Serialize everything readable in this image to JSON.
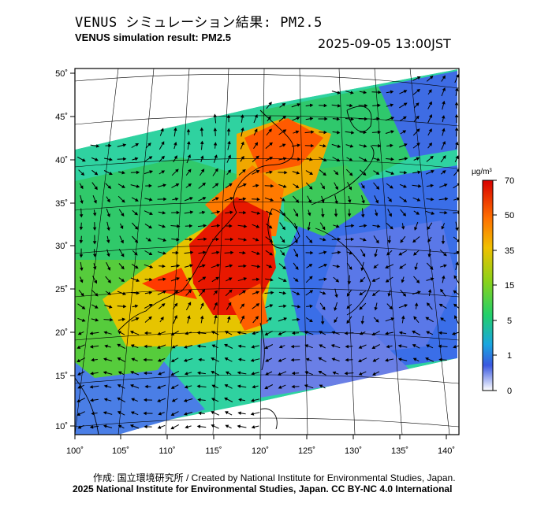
{
  "title_jp": "VENUS シミュレーション結果: PM2.5",
  "title_en": "VENUS simulation result: PM2.5",
  "datetime": "2025-09-05 13:00JST",
  "map": {
    "lat_labels": [
      "50˚",
      "45˚",
      "40˚",
      "35˚",
      "30˚",
      "25˚",
      "20˚",
      "15˚",
      "10˚"
    ],
    "lon_labels": [
      "100˚",
      "105˚",
      "110˚",
      "115˚",
      "120˚",
      "125˚",
      "130˚",
      "135˚",
      "140˚"
    ]
  },
  "colorbar": {
    "unit": "µg/m³",
    "ticks": [
      "70",
      "50",
      "35",
      "15",
      "5",
      "1",
      "0"
    ],
    "colors": [
      "#e00000",
      "#ff7a00",
      "#e8c800",
      "#7fd21e",
      "#1fd06a",
      "#1aa0e0",
      "#3b5be0",
      "#9aa0e8",
      "#ffffff"
    ]
  },
  "credits": {
    "line1": "作成: 国立環境研究所 / Created by National Institute for Environmental Studies, Japan.",
    "line2": "2025 National Institute for Environmental Studies, Japan. CC BY-NC 4.0 International"
  }
}
